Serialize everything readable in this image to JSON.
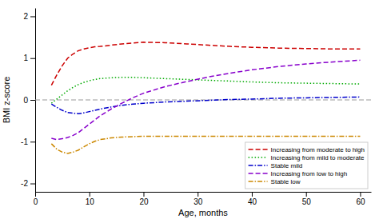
{
  "chart_data": {
    "type": "line",
    "xlabel": "Age, months",
    "ylabel": "BMI z-score",
    "xlim": [
      0,
      62
    ],
    "ylim": [
      -2.2,
      2.2
    ],
    "xticks": [
      0,
      10,
      20,
      30,
      40,
      50,
      60
    ],
    "yticks": [
      -2,
      -1,
      0,
      1,
      2
    ],
    "grid": false,
    "legend": "lower right",
    "hline": {
      "value": 0,
      "color": "#999999",
      "line_style": "dashed"
    },
    "x": [
      3,
      4,
      5,
      6,
      7,
      8,
      9,
      10,
      11,
      12,
      14,
      16,
      18,
      20,
      24,
      28,
      32,
      36,
      40,
      45,
      50,
      55,
      60
    ],
    "series": [
      {
        "name": "Increasing from moderate to high",
        "color": "#cc0000",
        "line_style": "dashed",
        "values": [
          0.35,
          0.6,
          0.82,
          1.0,
          1.1,
          1.18,
          1.22,
          1.25,
          1.27,
          1.28,
          1.31,
          1.34,
          1.36,
          1.38,
          1.37,
          1.34,
          1.31,
          1.28,
          1.26,
          1.24,
          1.23,
          1.22,
          1.22
        ]
      },
      {
        "name": "Increasing from mild to moderate",
        "color": "#00aa00",
        "line_style": "dotted",
        "values": [
          -0.08,
          0.02,
          0.12,
          0.22,
          0.3,
          0.37,
          0.42,
          0.46,
          0.49,
          0.51,
          0.53,
          0.54,
          0.54,
          0.53,
          0.51,
          0.49,
          0.47,
          0.45,
          0.43,
          0.41,
          0.4,
          0.39,
          0.38
        ]
      },
      {
        "name": "Stable mild",
        "color": "#0000cc",
        "line_style": "dashdot",
        "values": [
          -0.1,
          -0.18,
          -0.25,
          -0.3,
          -0.32,
          -0.33,
          -0.31,
          -0.28,
          -0.25,
          -0.22,
          -0.17,
          -0.13,
          -0.1,
          -0.08,
          -0.05,
          -0.03,
          -0.01,
          0.01,
          0.02,
          0.04,
          0.05,
          0.06,
          0.07
        ]
      },
      {
        "name": "Increasing from low to high",
        "color": "#8800cc",
        "line_style": "dashed",
        "values": [
          -0.92,
          -0.95,
          -0.93,
          -0.9,
          -0.85,
          -0.78,
          -0.68,
          -0.58,
          -0.48,
          -0.38,
          -0.22,
          -0.08,
          0.05,
          0.16,
          0.32,
          0.44,
          0.55,
          0.64,
          0.72,
          0.8,
          0.86,
          0.91,
          0.95
        ]
      },
      {
        "name": "Stable low",
        "color": "#cc8800",
        "line_style": "dashdot",
        "values": [
          -1.05,
          -1.18,
          -1.25,
          -1.28,
          -1.25,
          -1.2,
          -1.12,
          -1.05,
          -0.99,
          -0.95,
          -0.91,
          -0.89,
          -0.88,
          -0.87,
          -0.87,
          -0.87,
          -0.87,
          -0.87,
          -0.87,
          -0.87,
          -0.87,
          -0.87,
          -0.87
        ]
      }
    ]
  }
}
